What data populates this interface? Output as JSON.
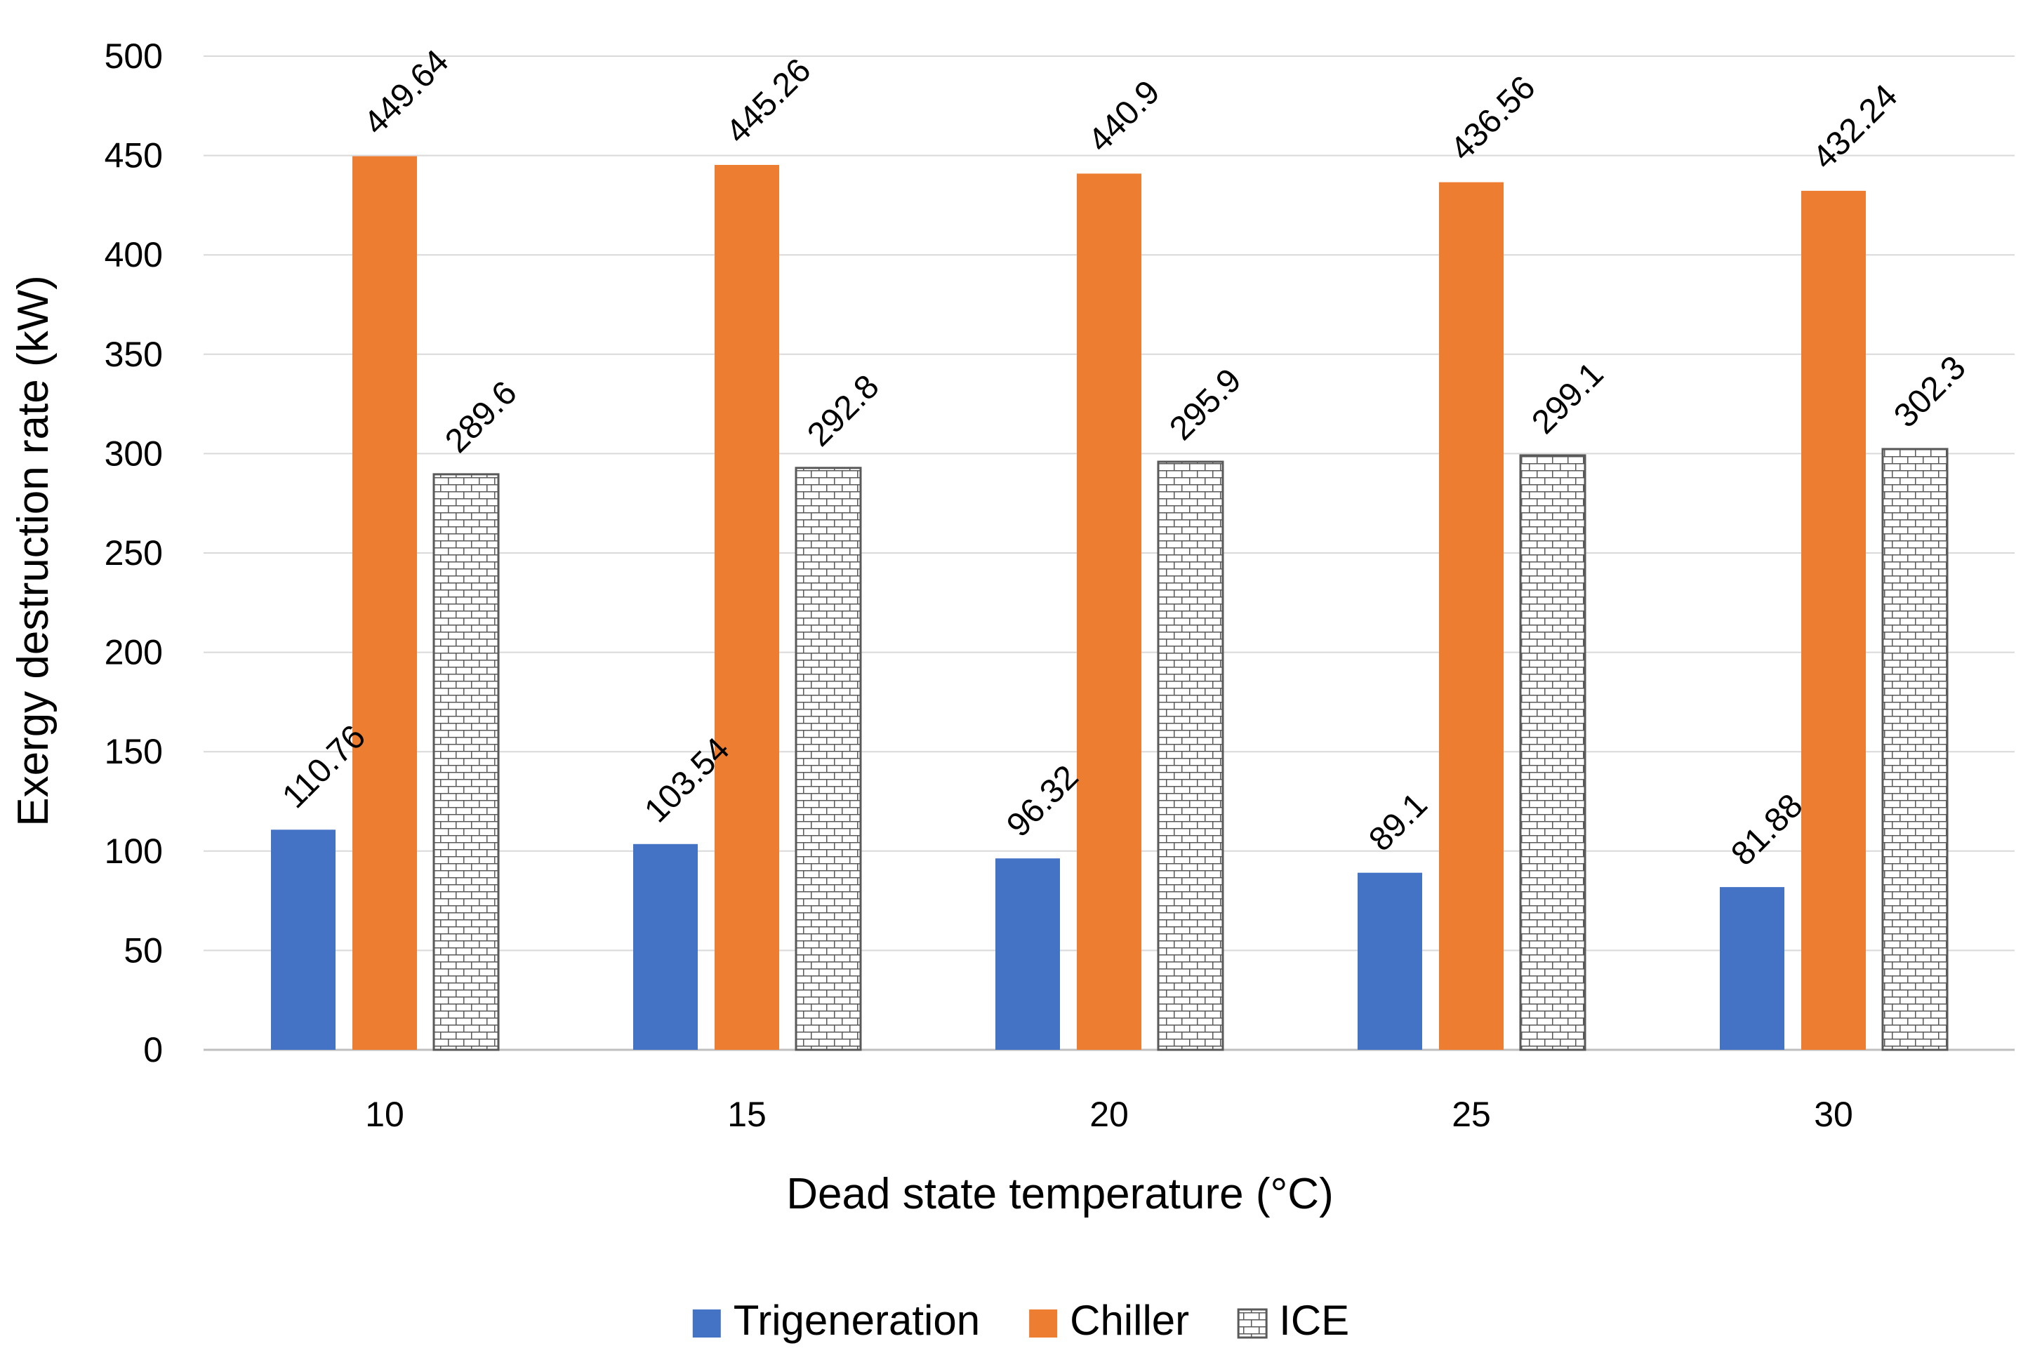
{
  "chart_data": {
    "type": "bar",
    "title": "",
    "xlabel": "Dead state temperature (°C)",
    "ylabel": "Exergy destruction rate (kW)",
    "ylim": [
      0,
      500
    ],
    "yticks": [
      0,
      50,
      100,
      150,
      200,
      250,
      300,
      350,
      400,
      450,
      500
    ],
    "categories": [
      "10",
      "15",
      "20",
      "25",
      "30"
    ],
    "grid": true,
    "legend_position": "bottom",
    "series": [
      {
        "name": "Trigeneration",
        "values": [
          110.76,
          103.54,
          96.32,
          89.1,
          81.88
        ],
        "labels": [
          "110.76",
          "103.54",
          "96.32",
          "89.1",
          "81.88"
        ],
        "color": "#4472c4",
        "pattern": "solid"
      },
      {
        "name": "Chiller",
        "values": [
          449.64,
          445.26,
          440.9,
          436.56,
          432.24
        ],
        "labels": [
          "449.64",
          "445.26",
          "440.9",
          "436.56",
          "432.24"
        ],
        "color": "#ed7d31",
        "pattern": "solid"
      },
      {
        "name": "ICE",
        "values": [
          289.6,
          292.8,
          295.9,
          299.1,
          302.3
        ],
        "labels": [
          "289.6",
          "292.8",
          "295.9",
          "299.1",
          "302.3"
        ],
        "color": "#595959",
        "pattern": "brick"
      }
    ]
  }
}
